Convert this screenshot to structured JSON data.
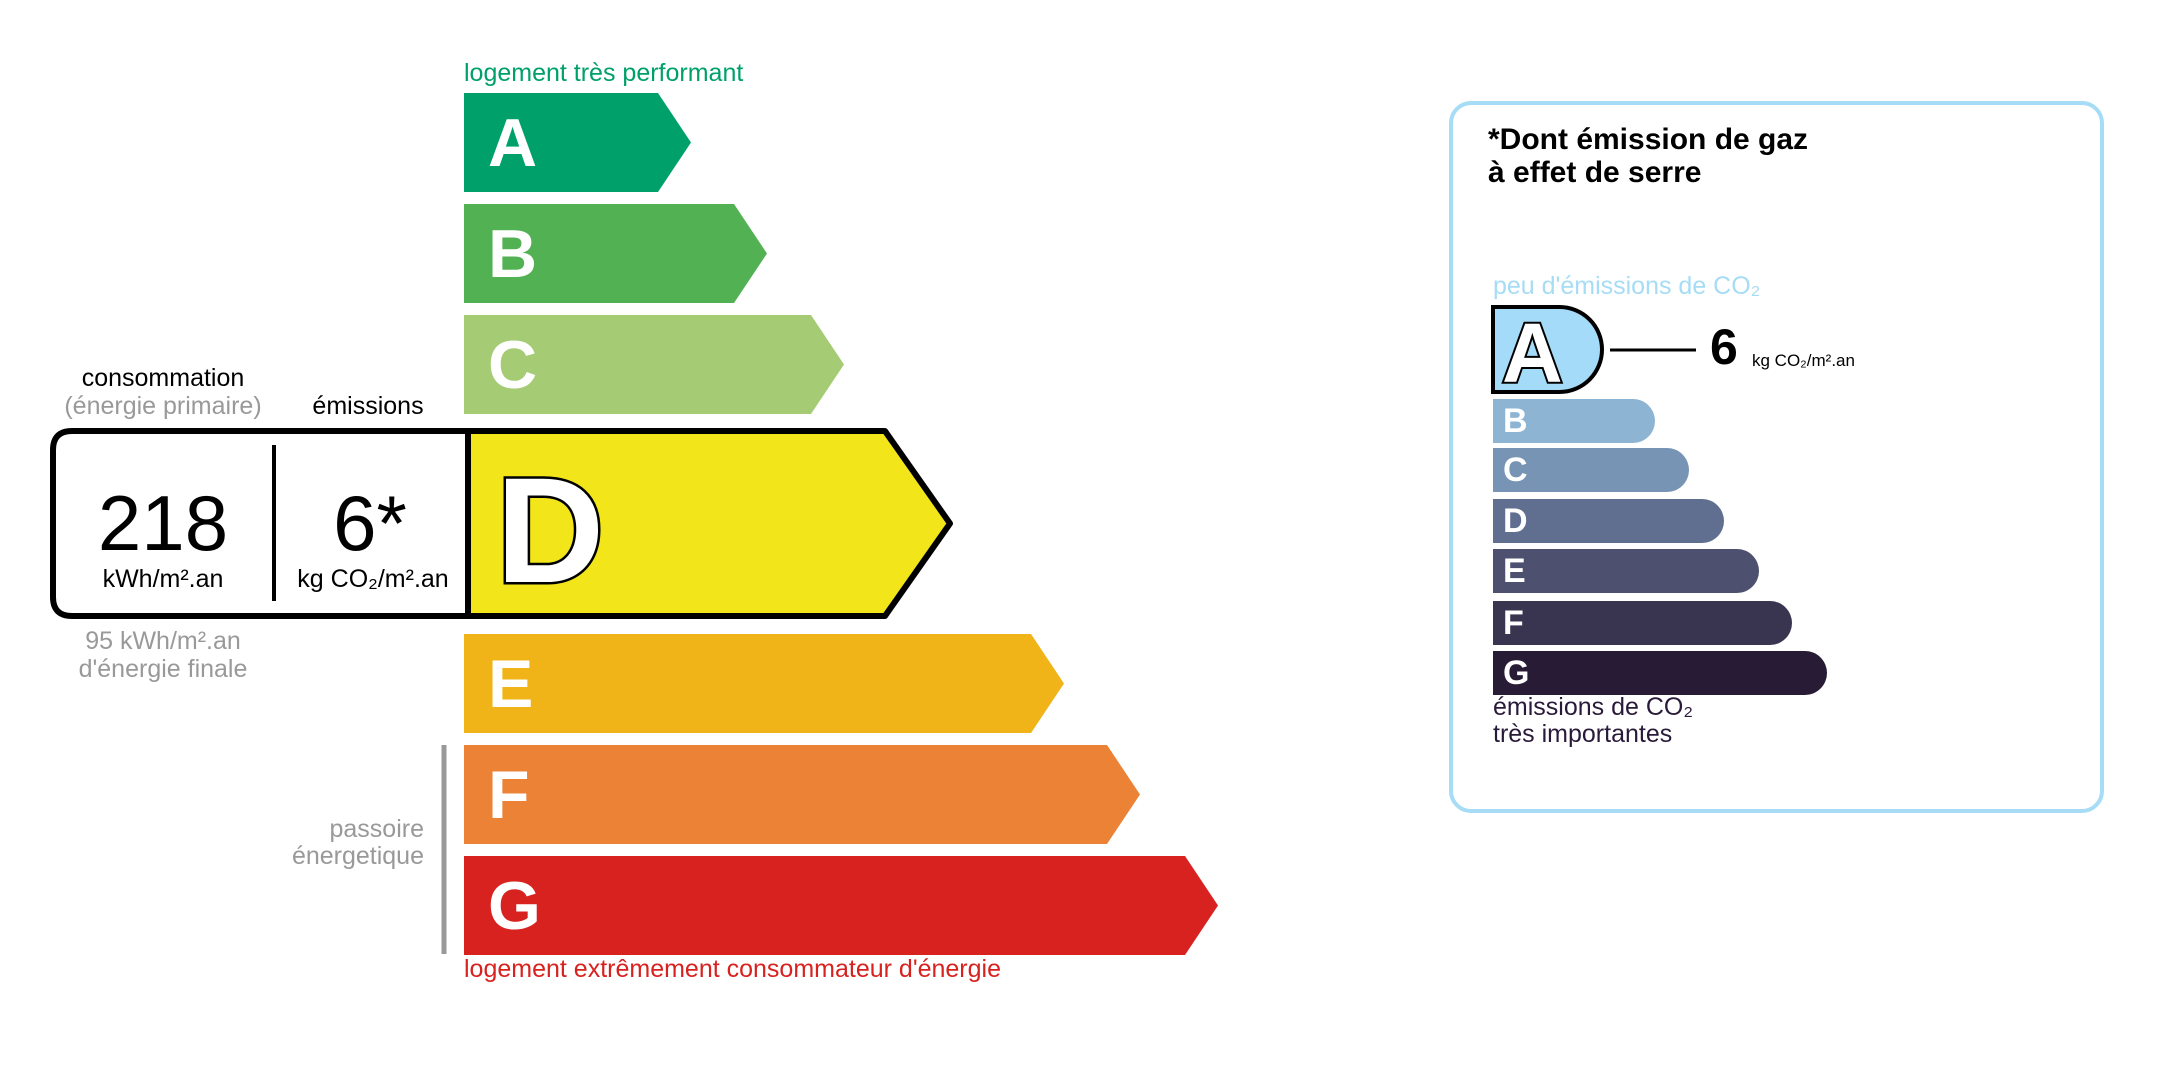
{
  "energy": {
    "top_label": "logement très performant",
    "bottom_label": "logement extrêmement consommateur d'énergie",
    "classes": [
      {
        "letter": "A",
        "color": "#00a06b"
      },
      {
        "letter": "B",
        "color": "#52b153"
      },
      {
        "letter": "C",
        "color": "#a5cc74"
      },
      {
        "letter": "D",
        "color": "#f2e51a"
      },
      {
        "letter": "E",
        "color": "#f0b418"
      },
      {
        "letter": "F",
        "color": "#ec8235"
      },
      {
        "letter": "G",
        "color": "#d7221f"
      }
    ],
    "active_class": "D",
    "consumption_label": "consommation",
    "consumption_sublabel": "(énergie primaire)",
    "emissions_label": "émissions",
    "consumption_value": "218",
    "consumption_unit": "kWh/m².an",
    "emissions_value": "6*",
    "emissions_unit": "kg CO₂/m².an",
    "final_energy_value": "95 kWh/m².an",
    "final_energy_label": "d'énergie finale",
    "passoire_line1": "passoire",
    "passoire_line2": "énergetique"
  },
  "ges": {
    "title_line1": "*Dont émission de gaz",
    "title_line2": "à effet de serre",
    "top_label": "peu d'émissions de CO₂",
    "bottom_label_line1": "émissions de CO₂",
    "bottom_label_line2": "très importantes",
    "classes": [
      {
        "letter": "A",
        "color": "#a4dbf8"
      },
      {
        "letter": "B",
        "color": "#8db4d3"
      },
      {
        "letter": "C",
        "color": "#7794b4"
      },
      {
        "letter": "D",
        "color": "#606f90"
      },
      {
        "letter": "E",
        "color": "#4d506f"
      },
      {
        "letter": "F",
        "color": "#393551"
      },
      {
        "letter": "G",
        "color": "#281b35"
      }
    ],
    "active_class": "A",
    "value": "6",
    "unit": "kg CO₂/m².an",
    "border_color": "#a6dcf5"
  }
}
